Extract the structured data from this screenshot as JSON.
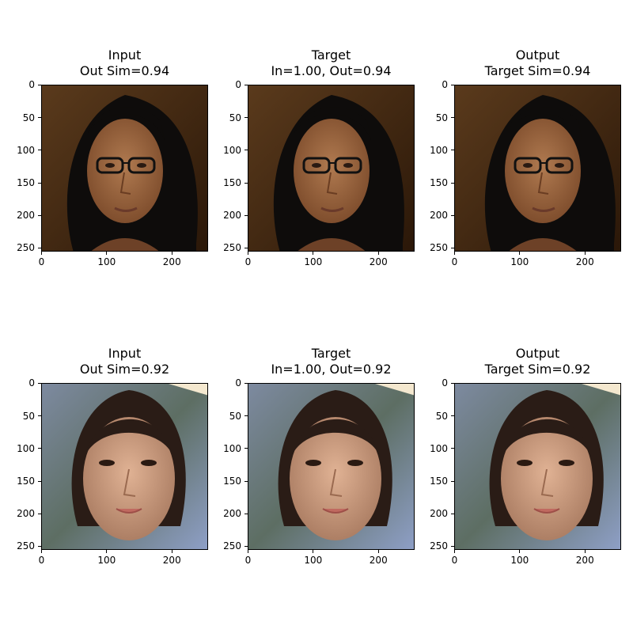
{
  "panels": [
    {
      "title_line1": "Input",
      "title_line2": "Out Sim=0.94",
      "subject": "woman-glasses"
    },
    {
      "title_line1": "Target",
      "title_line2": "In=1.00, Out=0.94",
      "subject": "woman-glasses"
    },
    {
      "title_line1": "Output",
      "title_line2": "Target Sim=0.94",
      "subject": "woman-glasses"
    },
    {
      "title_line1": "Input",
      "title_line2": "Out Sim=0.92",
      "subject": "girl"
    },
    {
      "title_line1": "Target",
      "title_line2": "In=1.00, Out=0.92",
      "subject": "girl"
    },
    {
      "title_line1": "Output",
      "title_line2": "Target Sim=0.92",
      "subject": "girl"
    }
  ],
  "x_ticks": [
    "0",
    "100",
    "200"
  ],
  "y_ticks": [
    "0",
    "50",
    "100",
    "150",
    "200",
    "250"
  ]
}
